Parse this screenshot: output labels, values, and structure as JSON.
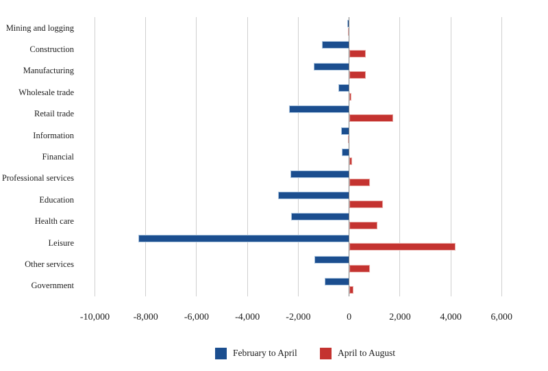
{
  "chart_data": {
    "type": "bar",
    "orientation": "horizontal",
    "title": "",
    "xlabel": "",
    "ylabel": "",
    "categories": [
      "Mining and logging",
      "Construction",
      "Manufacturing",
      "Wholesale trade",
      "Retail trade",
      "Information",
      "Financial",
      "Professional services",
      "Education",
      "Health care",
      "Leisure",
      "Other services",
      "Government"
    ],
    "series": [
      {
        "name": "February to April",
        "color": "#1b4e8f",
        "border_color": "#a9c3de",
        "values": [
          -80,
          -1070,
          -1380,
          -410,
          -2370,
          -300,
          -280,
          -2310,
          -2790,
          -2280,
          -8300,
          -1370,
          -970
        ]
      },
      {
        "name": "April to August",
        "color": "#c43330",
        "border_color": "#e9aba6",
        "values": [
          -50,
          650,
          650,
          90,
          1730,
          -50,
          110,
          810,
          1330,
          1120,
          4180,
          830,
          160
        ]
      }
    ],
    "xlim": [
      -10000,
      6000
    ],
    "x_ticks": [
      -10000,
      -8000,
      -6000,
      -4000,
      -2000,
      0,
      2000,
      4000,
      6000
    ],
    "x_tick_labels": [
      "-10,000",
      "-8,000",
      "-6,000",
      "-4,000",
      "-2,000",
      "0",
      "2,000",
      "4,000",
      "6,000"
    ],
    "grid": "vertical",
    "grid_color": "#cfcfcf",
    "zero_axis_color": "#7d7d7d",
    "text_color": "#1a1a1a",
    "legend_position": "bottom"
  }
}
